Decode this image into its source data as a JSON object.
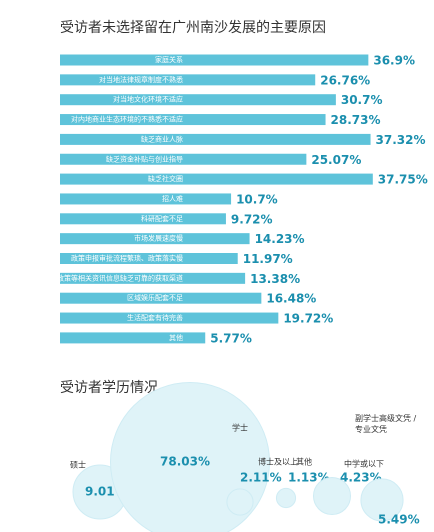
{
  "chart_data": [
    {
      "type": "bar",
      "title": "受访者未选择留在广州南沙发展的主要原因",
      "color": "#5ec3da",
      "label_color": "#1b8fae",
      "categories": [
        "家庭关系",
        "对当地法律规章制度不熟悉",
        "对当地文化环境不适应",
        "对内地商业生态环境的不熟悉不适应",
        "缺乏商业人脉",
        "缺乏资金补贴与创业指导",
        "缺乏社交圈",
        "招人难",
        "科研配套不足",
        "市场发展速度慢",
        "政策申报审批流程繁琐、政策落实慢",
        "政策等相关资讯信息缺乏可靠的获取渠道",
        "区域娱乐配套不足",
        "生活配套有待完善",
        "其他"
      ],
      "values": [
        36.9,
        26.76,
        30.7,
        28.73,
        37.32,
        25.07,
        37.75,
        10.7,
        9.72,
        14.23,
        11.97,
        13.38,
        16.48,
        19.72,
        5.77
      ],
      "value_labels": [
        "36.9%",
        "26.76%",
        "30.7%",
        "28.73%",
        "37.32%",
        "25.07%",
        "37.75%",
        "10.7%",
        "9.72%",
        "14.23%",
        "11.97%",
        "13.38%",
        "16.48%",
        "19.72%",
        "5.77%"
      ]
    },
    {
      "type": "bubble",
      "title": "受访者学历情况",
      "color": "#dff3f8",
      "label_color": "#1b8fae",
      "categories": [
        "硕士",
        "学士",
        "博士及以上",
        "其他",
        "中学或以下",
        "副学士高级文凭 / 专业文凭"
      ],
      "values": [
        9.01,
        78.03,
        2.11,
        1.13,
        4.23,
        5.49
      ],
      "value_labels": [
        "9.01%",
        "78.03%",
        "2.11%",
        "1.13%",
        "4.23%",
        "5.49%"
      ]
    }
  ]
}
